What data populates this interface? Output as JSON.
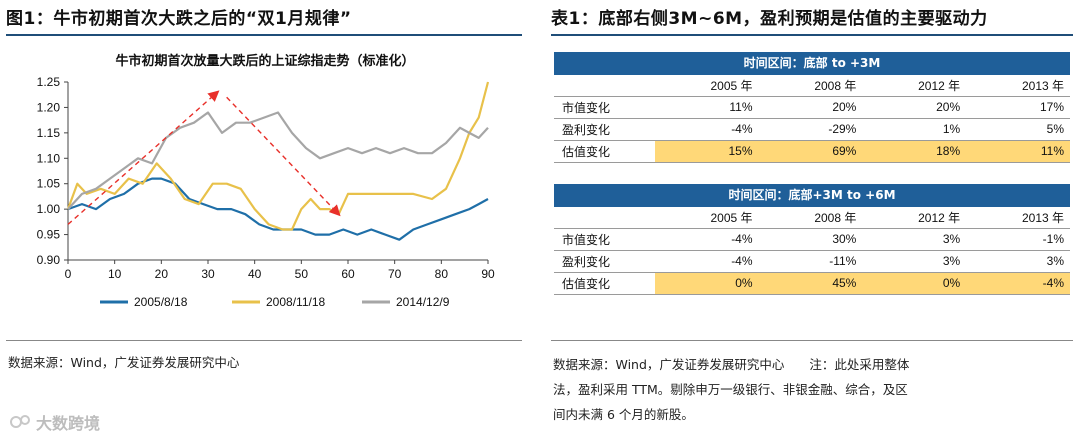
{
  "left_panel": {
    "figure_title": "图1：牛市初期首次大跌之后的“双1月规律”",
    "source": "数据来源：Wind，广发证券发展研究中心"
  },
  "right_panel": {
    "table_title": "表1：底部右侧3M~6M，盈利预期是估值的主要驱动力",
    "source_lines": [
      "数据来源：Wind，广发证券发展研究中心　　注：此处采用整体",
      "法，盈利采用 TTM。剔除申万一级银行、非银金融、综合，及区",
      "间内未满 6 个月的新股。"
    ],
    "sections": [
      {
        "header": "时间区间：底部 to +3M",
        "years": [
          "2005 年",
          "2008 年",
          "2012 年",
          "2013 年"
        ],
        "rows": [
          {
            "label": "市值变化",
            "values": [
              "11%",
              "20%",
              "20%",
              "17%"
            ],
            "highlight": false
          },
          {
            "label": "盈利变化",
            "values": [
              "-4%",
              "-29%",
              "1%",
              "5%"
            ],
            "highlight": false
          },
          {
            "label": "估值变化",
            "values": [
              "15%",
              "69%",
              "18%",
              "11%"
            ],
            "highlight": true
          }
        ]
      },
      {
        "header": "时间区间：底部+3M to +6M",
        "years": [
          "2005 年",
          "2008 年",
          "2012 年",
          "2013 年"
        ],
        "rows": [
          {
            "label": "市值变化",
            "values": [
              "-4%",
              "30%",
              "3%",
              "-1%"
            ],
            "highlight": false
          },
          {
            "label": "盈利变化",
            "values": [
              "-4%",
              "-11%",
              "3%",
              "3%"
            ],
            "highlight": false
          },
          {
            "label": "估值变化",
            "values": [
              "0%",
              "45%",
              "0%",
              "-4%"
            ],
            "highlight": true
          }
        ]
      }
    ]
  },
  "watermark": "大数跨境",
  "colors": {
    "title_rule": "#1f4e79",
    "table_header": "#1f5f99",
    "highlight": "#ffd878",
    "arrow": "#e8302a"
  },
  "chart_data": {
    "type": "line",
    "title": "牛市初期首次放量大跌后的上证综指走势（标准化）",
    "xlabel": "",
    "ylabel": "",
    "xlim": [
      0,
      90
    ],
    "ylim": [
      0.9,
      1.25
    ],
    "xticks": [
      0,
      10,
      20,
      30,
      40,
      50,
      60,
      70,
      80,
      90
    ],
    "yticks": [
      "0.90",
      "0.95",
      "1.00",
      "1.05",
      "1.10",
      "1.15",
      "1.20",
      "1.25"
    ],
    "grid": false,
    "legend_position": "bottom",
    "series": [
      {
        "name": "2005/8/18",
        "color": "#1f6fa8",
        "x": [
          0,
          3,
          6,
          9,
          12,
          15,
          18,
          20,
          23,
          26,
          29,
          32,
          35,
          38,
          41,
          44,
          47,
          50,
          53,
          56,
          59,
          62,
          65,
          68,
          71,
          74,
          77,
          80,
          83,
          86,
          88,
          90
        ],
        "y": [
          1.0,
          1.01,
          1.0,
          1.02,
          1.03,
          1.05,
          1.06,
          1.06,
          1.05,
          1.02,
          1.01,
          1.0,
          1.0,
          0.99,
          0.97,
          0.96,
          0.96,
          0.96,
          0.95,
          0.95,
          0.96,
          0.95,
          0.96,
          0.95,
          0.94,
          0.96,
          0.97,
          0.98,
          0.99,
          1.0,
          1.01,
          1.02
        ]
      },
      {
        "name": "2008/11/18",
        "color": "#e8c14a",
        "x": [
          0,
          2,
          4,
          7,
          10,
          13,
          16,
          19,
          22,
          25,
          28,
          31,
          34,
          37,
          40,
          43,
          46,
          48,
          50,
          52,
          54,
          56,
          58,
          60,
          63,
          66,
          70,
          74,
          78,
          81,
          84,
          86,
          88,
          90
        ],
        "y": [
          1.0,
          1.05,
          1.03,
          1.04,
          1.03,
          1.06,
          1.05,
          1.09,
          1.06,
          1.02,
          1.01,
          1.05,
          1.05,
          1.04,
          1.0,
          0.97,
          0.96,
          0.96,
          1.0,
          1.02,
          1.0,
          1.0,
          0.99,
          1.03,
          1.03,
          1.03,
          1.03,
          1.03,
          1.02,
          1.04,
          1.1,
          1.15,
          1.18,
          1.25
        ]
      },
      {
        "name": "2014/12/9",
        "color": "#a6a6a6",
        "x": [
          0,
          3,
          6,
          9,
          12,
          15,
          18,
          21,
          24,
          27,
          30,
          33,
          36,
          39,
          42,
          45,
          48,
          51,
          54,
          57,
          60,
          63,
          66,
          69,
          72,
          75,
          78,
          81,
          84,
          86,
          88,
          90
        ],
        "y": [
          1.0,
          1.03,
          1.04,
          1.06,
          1.08,
          1.1,
          1.09,
          1.14,
          1.16,
          1.17,
          1.19,
          1.15,
          1.17,
          1.17,
          1.18,
          1.19,
          1.15,
          1.12,
          1.1,
          1.11,
          1.12,
          1.11,
          1.12,
          1.11,
          1.12,
          1.11,
          1.11,
          1.13,
          1.16,
          1.15,
          1.14,
          1.16
        ]
      }
    ],
    "annotations": [
      {
        "type": "arrow",
        "style": "dashed",
        "color": "#e8302a",
        "from": [
          0,
          0.97
        ],
        "to": [
          32,
          1.23
        ]
      },
      {
        "type": "arrow",
        "style": "dashed",
        "color": "#e8302a",
        "from": [
          34,
          1.22
        ],
        "to": [
          58,
          0.99
        ]
      }
    ]
  }
}
